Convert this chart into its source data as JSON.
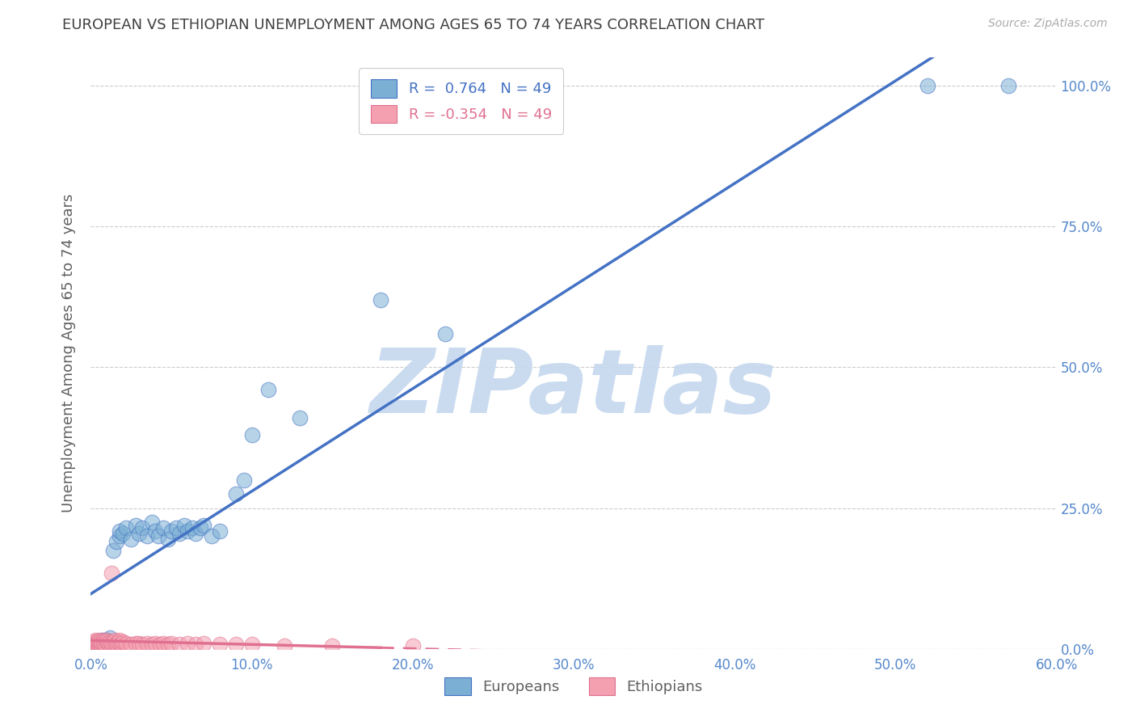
{
  "title": "EUROPEAN VS ETHIOPIAN UNEMPLOYMENT AMONG AGES 65 TO 74 YEARS CORRELATION CHART",
  "source": "Source: ZipAtlas.com",
  "xlabel": "",
  "ylabel": "Unemployment Among Ages 65 to 74 years",
  "xlim": [
    0.0,
    0.6
  ],
  "ylim": [
    0.0,
    1.05
  ],
  "xticks": [
    0.0,
    0.1,
    0.2,
    0.3,
    0.4,
    0.5,
    0.6
  ],
  "xticklabels": [
    "0.0%",
    "10.0%",
    "20.0%",
    "30.0%",
    "40.0%",
    "50.0%",
    "60.0%"
  ],
  "yticks": [
    0.0,
    0.25,
    0.5,
    0.75,
    1.0
  ],
  "yticklabels_right": [
    "0.0%",
    "25.0%",
    "50.0%",
    "75.0%",
    "100.0%"
  ],
  "european_color": "#7BAFD4",
  "ethiopian_color": "#F4A0B0",
  "european_line_color": "#4472C4",
  "ethiopian_line_color": "#E07090",
  "r_european": 0.764,
  "n_european": 49,
  "r_ethiopian": -0.354,
  "n_ethiopian": 49,
  "watermark": "ZIPatlas",
  "watermark_color": "#C5D8EE",
  "background_color": "#FFFFFF",
  "grid_color": "#CCCCCC",
  "title_color": "#404040",
  "axis_label_color": "#606060",
  "tick_label_color": "#5588CC",
  "legend_label_european": "Europeans",
  "legend_label_ethiopian": "Ethiopians",
  "european_x": [
    0.002,
    0.003,
    0.003,
    0.004,
    0.004,
    0.005,
    0.006,
    0.007,
    0.007,
    0.008,
    0.009,
    0.01,
    0.012,
    0.014,
    0.016,
    0.018,
    0.018,
    0.02,
    0.022,
    0.025,
    0.028,
    0.03,
    0.032,
    0.035,
    0.038,
    0.04,
    0.042,
    0.045,
    0.048,
    0.05,
    0.053,
    0.055,
    0.058,
    0.06,
    0.063,
    0.065,
    0.068,
    0.07,
    0.075,
    0.08,
    0.09,
    0.095,
    0.1,
    0.11,
    0.13,
    0.18,
    0.22,
    0.52,
    0.57
  ],
  "european_y": [
    0.005,
    0.008,
    0.01,
    0.006,
    0.012,
    0.008,
    0.005,
    0.01,
    0.015,
    0.008,
    0.012,
    0.015,
    0.02,
    0.175,
    0.19,
    0.2,
    0.21,
    0.205,
    0.215,
    0.195,
    0.22,
    0.205,
    0.215,
    0.2,
    0.225,
    0.21,
    0.2,
    0.215,
    0.195,
    0.21,
    0.215,
    0.205,
    0.22,
    0.21,
    0.215,
    0.205,
    0.215,
    0.22,
    0.2,
    0.21,
    0.275,
    0.3,
    0.38,
    0.46,
    0.41,
    0.62,
    0.56,
    1.0,
    1.0
  ],
  "ethiopian_x": [
    0.001,
    0.002,
    0.002,
    0.003,
    0.003,
    0.004,
    0.004,
    0.005,
    0.005,
    0.006,
    0.006,
    0.007,
    0.008,
    0.008,
    0.009,
    0.01,
    0.01,
    0.011,
    0.012,
    0.013,
    0.014,
    0.015,
    0.016,
    0.017,
    0.018,
    0.019,
    0.02,
    0.022,
    0.025,
    0.028,
    0.03,
    0.032,
    0.035,
    0.038,
    0.04,
    0.043,
    0.045,
    0.048,
    0.05,
    0.055,
    0.06,
    0.065,
    0.07,
    0.08,
    0.09,
    0.1,
    0.12,
    0.15,
    0.2
  ],
  "ethiopian_y": [
    0.01,
    0.008,
    0.012,
    0.01,
    0.015,
    0.008,
    0.012,
    0.01,
    0.015,
    0.008,
    0.012,
    0.01,
    0.015,
    0.01,
    0.008,
    0.012,
    0.015,
    0.01,
    0.012,
    0.01,
    0.012,
    0.015,
    0.01,
    0.012,
    0.015,
    0.01,
    0.012,
    0.01,
    0.008,
    0.01,
    0.01,
    0.008,
    0.01,
    0.008,
    0.01,
    0.008,
    0.01,
    0.008,
    0.01,
    0.008,
    0.01,
    0.008,
    0.01,
    0.008,
    0.008,
    0.008,
    0.006,
    0.005,
    0.005
  ],
  "ethiopian_highlight_x": [
    0.013
  ],
  "ethiopian_highlight_y": [
    0.135
  ]
}
